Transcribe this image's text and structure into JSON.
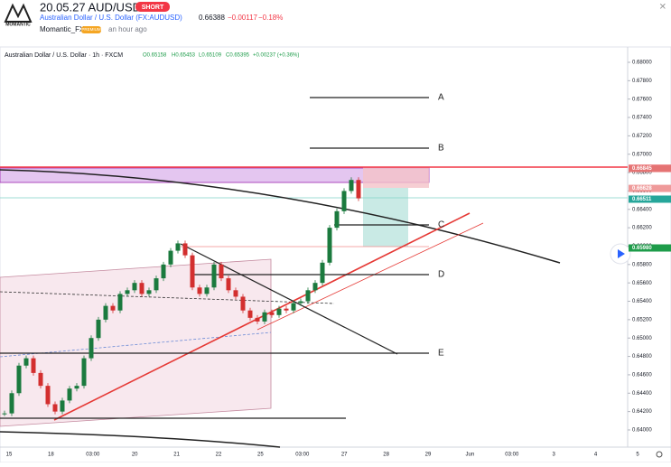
{
  "header": {
    "logo": "MOMANTIC",
    "title": "20.05.27 AUD/USD",
    "badge": "SHORT",
    "symbol": "Australian Dollar / U.S. Dollar (FX:AUDUSD)",
    "price": "0.66388",
    "change": "−0.00117",
    "change_pct": "−0.18%",
    "author": "Momantic_FX",
    "author_badge": "PREMIUM",
    "time": "an hour ago"
  },
  "legend": {
    "symbol": "Australian Dollar / U.S. Dollar · 1h · FXCM",
    "open": "O0.65158",
    "high": "H0.65453",
    "low": "L0.65109",
    "close": "C0.65395",
    "change": "+0.00237 (+0.36%)"
  },
  "chart_data": {
    "type": "candlestick",
    "ylim": [
      0.63813,
      0.68167
    ],
    "yticks": [
      {
        "value": 0.68,
        "label": "0.68000"
      },
      {
        "value": 0.678,
        "label": "0.67800"
      },
      {
        "value": 0.676,
        "label": "0.67600"
      },
      {
        "value": 0.674,
        "label": "0.67400"
      },
      {
        "value": 0.672,
        "label": "0.67200"
      },
      {
        "value": 0.67,
        "label": "0.67000"
      },
      {
        "value": 0.668,
        "label": "0.66800"
      },
      {
        "value": 0.666,
        "label": "0.66600"
      },
      {
        "value": 0.664,
        "label": "0.66400"
      },
      {
        "value": 0.662,
        "label": "0.66200"
      },
      {
        "value": 0.66,
        "label": "0.66000"
      },
      {
        "value": 0.658,
        "label": "0.65800"
      },
      {
        "value": 0.656,
        "label": "0.65600"
      },
      {
        "value": 0.654,
        "label": "0.65400"
      },
      {
        "value": 0.652,
        "label": "0.65200"
      },
      {
        "value": 0.65,
        "label": "0.65000"
      },
      {
        "value": 0.648,
        "label": "0.64800"
      },
      {
        "value": 0.646,
        "label": "0.64600"
      },
      {
        "value": 0.644,
        "label": "0.64400"
      },
      {
        "value": 0.642,
        "label": "0.64200"
      },
      {
        "value": 0.64,
        "label": "0.64000"
      }
    ],
    "price_labels": [
      {
        "value": 0.66847,
        "label": "0.66847",
        "color": "#f23645"
      },
      {
        "value": 0.66845,
        "label": "0.66845",
        "color": "#e57373"
      },
      {
        "value": 0.66628,
        "label": "0.66628",
        "color": "#ef9a9a"
      },
      {
        "value": 0.66511,
        "label": "0.66511",
        "color": "#26a69a"
      },
      {
        "value": 0.6598,
        "label": "0.65980",
        "color": "#1e9c4a"
      }
    ],
    "categories": [
      "15",
      "18",
      "03:00",
      "20",
      "21",
      "22",
      "25",
      "03:00",
      "27",
      "28",
      "29",
      "Jun",
      "03:00",
      "3",
      "4",
      "5"
    ],
    "closes": [
      0.6418,
      0.644,
      0.647,
      0.6478,
      0.6462,
      0.6448,
      0.6428,
      0.642,
      0.6432,
      0.6445,
      0.6448,
      0.6478,
      0.65,
      0.652,
      0.6535,
      0.653,
      0.6548,
      0.6552,
      0.656,
      0.6548,
      0.6552,
      0.6565,
      0.658,
      0.6595,
      0.6603,
      0.659,
      0.6555,
      0.6548,
      0.6555,
      0.658,
      0.6565,
      0.6552,
      0.6545,
      0.653,
      0.6522,
      0.6518,
      0.6528,
      0.6525,
      0.6532,
      0.653,
      0.6538,
      0.654,
      0.6552,
      0.656,
      0.6582,
      0.662,
      0.6638,
      0.666,
      0.6672,
      0.6652
    ],
    "up_color": "#1b7a3e",
    "down_color": "#d32f2f",
    "level_labels": [
      "A",
      "B",
      "C",
      "D",
      "E"
    ]
  }
}
